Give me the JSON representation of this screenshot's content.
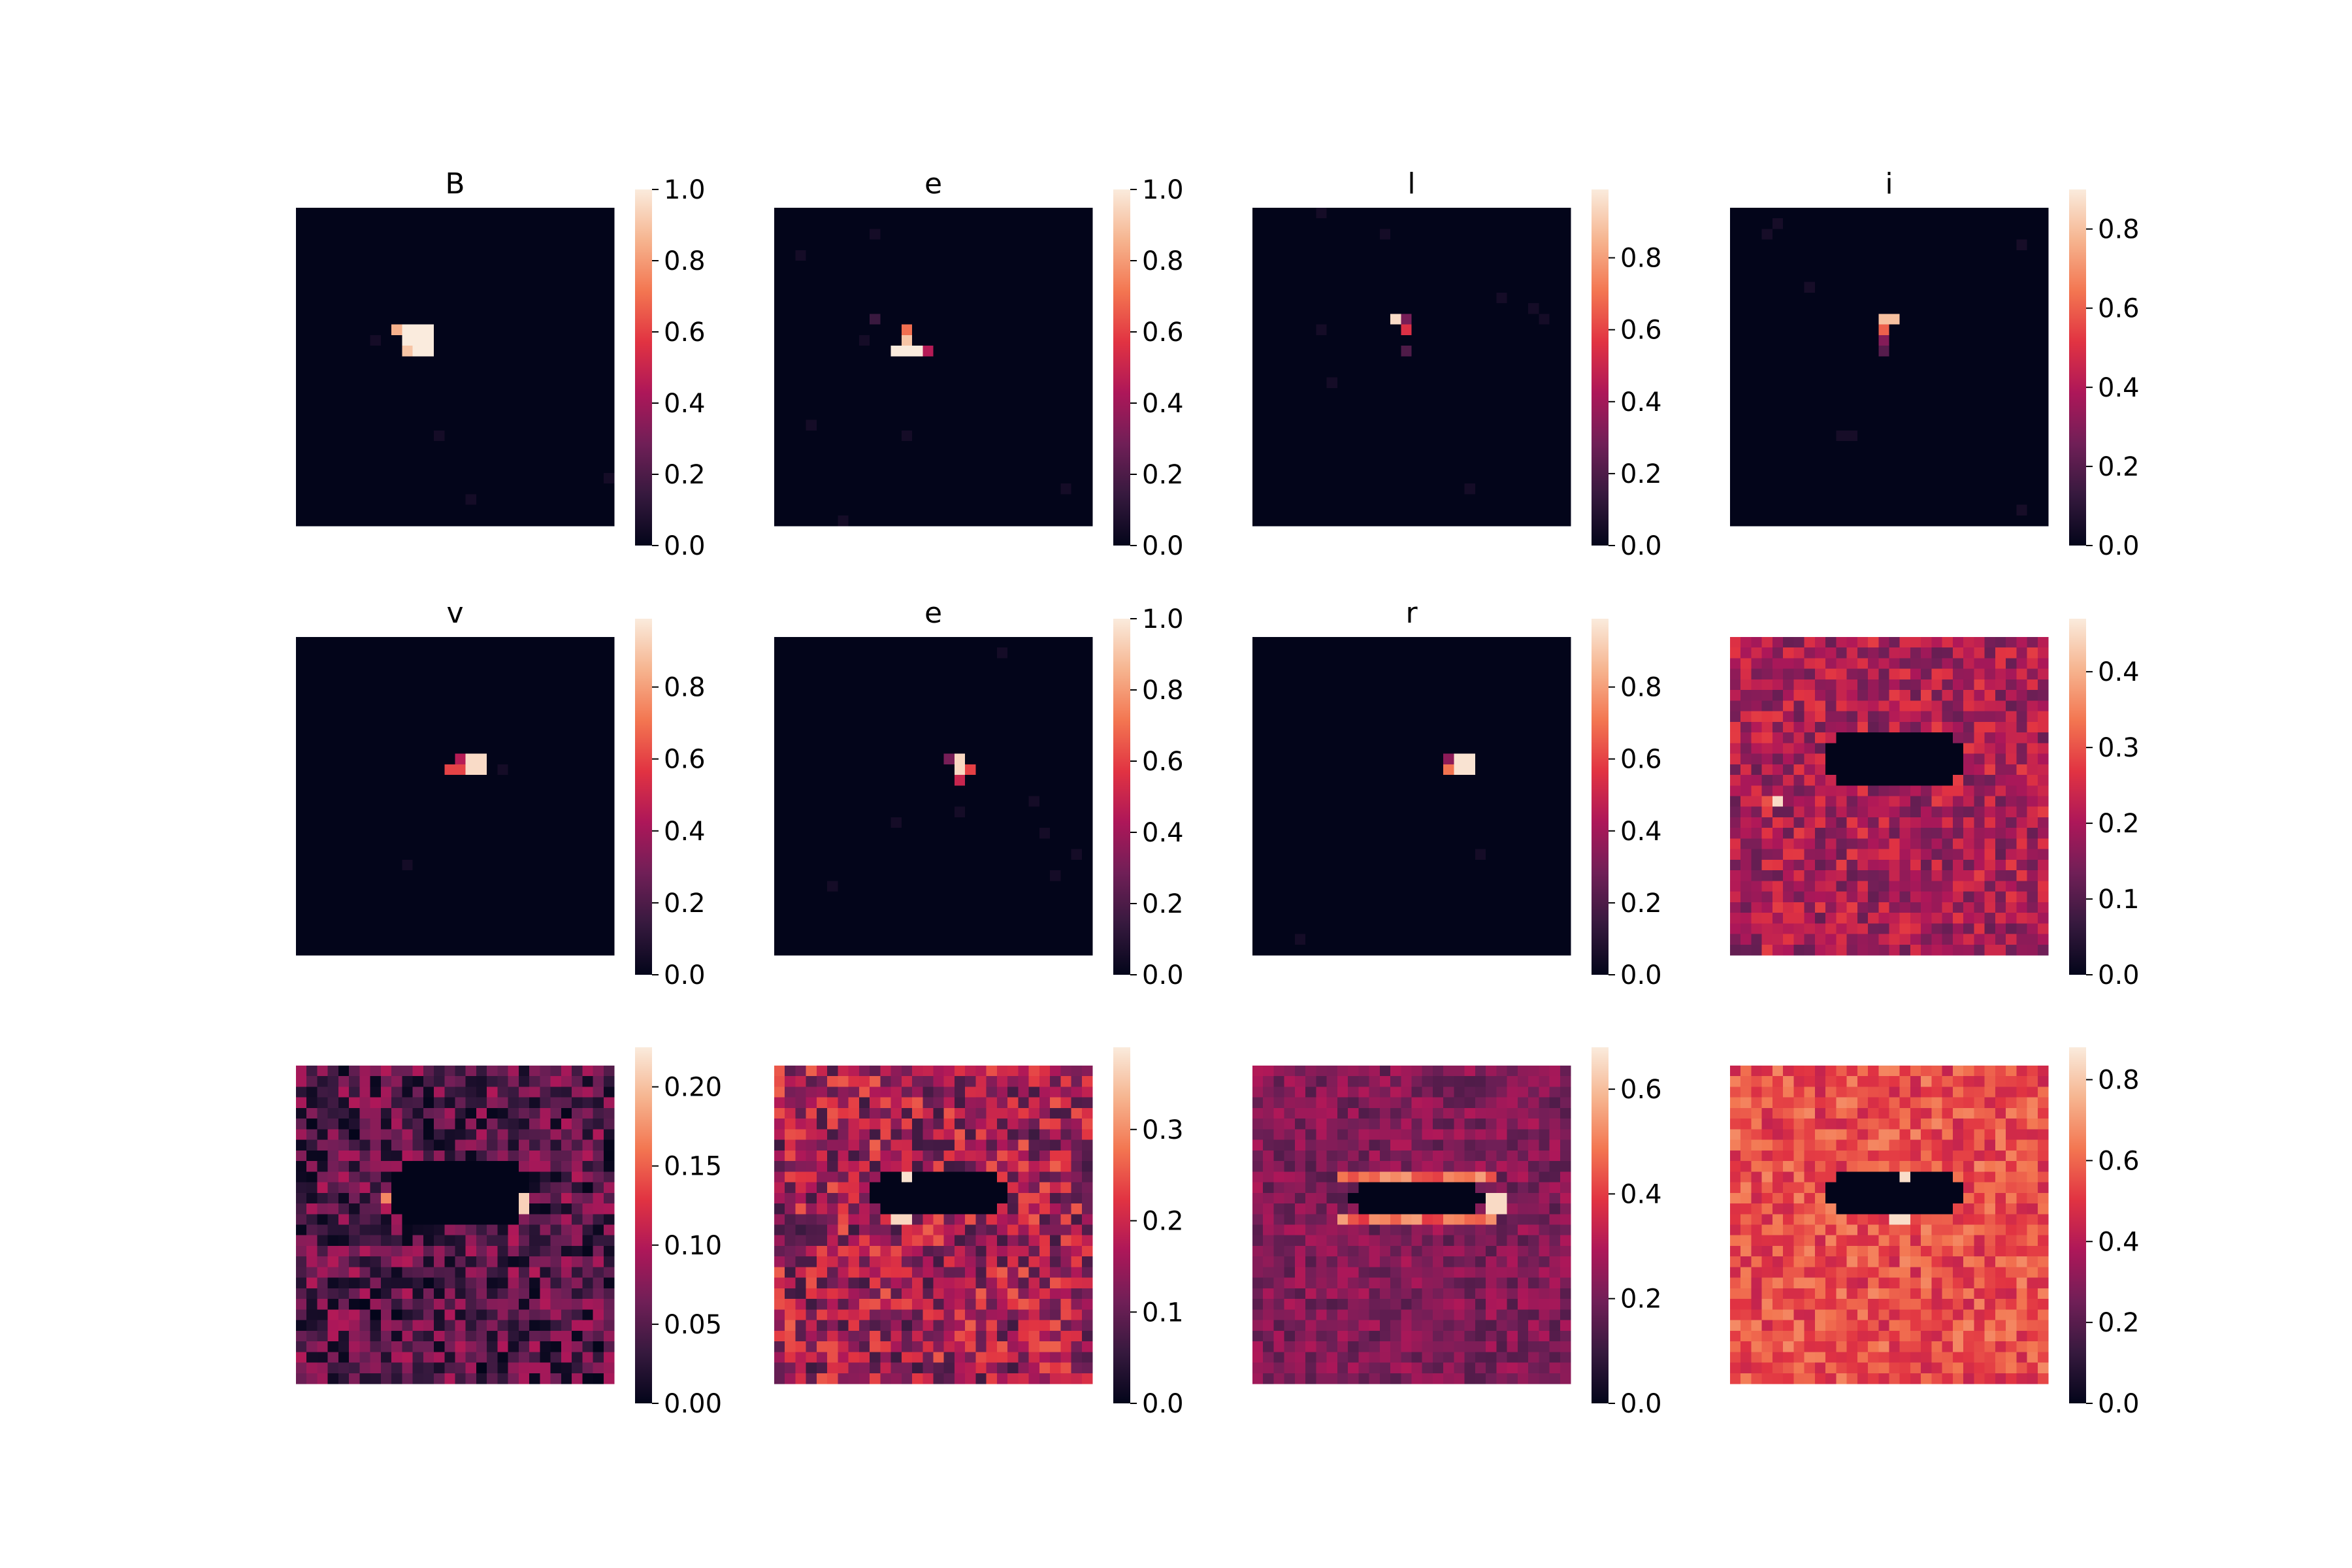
{
  "colormap": {
    "name": "rocket",
    "stops": [
      "#03051a",
      "#36193e",
      "#701f57",
      "#ad1759",
      "#e13342",
      "#f37651",
      "#f6b48f",
      "#faebdd"
    ]
  },
  "chart_data": [
    {
      "type": "heatmap",
      "title": "B",
      "grid_size": 30,
      "vmin": 0,
      "vmax": 1.0,
      "colorbar_ticks": [
        "0.0",
        "0.2",
        "0.4",
        "0.6",
        "0.8",
        "1.0"
      ],
      "pattern": "spot",
      "spots": [
        {
          "row": 11,
          "col": 10,
          "w": 3,
          "h": 3,
          "value": 1.0
        },
        {
          "row": 11,
          "col": 9,
          "w": 1,
          "h": 1,
          "value": 0.85
        },
        {
          "row": 13,
          "col": 10,
          "w": 1,
          "h": 1,
          "value": 0.9
        }
      ],
      "background": 0.0
    },
    {
      "type": "heatmap",
      "title": "e",
      "grid_size": 30,
      "vmin": 0,
      "vmax": 1.0,
      "colorbar_ticks": [
        "0.0",
        "0.2",
        "0.4",
        "0.6",
        "0.8",
        "1.0"
      ],
      "pattern": "spot",
      "spots": [
        {
          "row": 13,
          "col": 11,
          "w": 3,
          "h": 1,
          "value": 1.0
        },
        {
          "row": 12,
          "col": 12,
          "w": 1,
          "h": 1,
          "value": 0.9
        },
        {
          "row": 11,
          "col": 12,
          "w": 1,
          "h": 1,
          "value": 0.7
        },
        {
          "row": 13,
          "col": 14,
          "w": 1,
          "h": 1,
          "value": 0.45
        },
        {
          "row": 10,
          "col": 9,
          "w": 1,
          "h": 1,
          "value": 0.15
        }
      ],
      "background": 0.0
    },
    {
      "type": "heatmap",
      "title": "l",
      "grid_size": 30,
      "vmin": 0,
      "vmax": 0.99,
      "colorbar_ticks": [
        "0.0",
        "0.2",
        "0.4",
        "0.6",
        "0.8"
      ],
      "pattern": "spot",
      "spots": [
        {
          "row": 10,
          "col": 13,
          "w": 1,
          "h": 1,
          "value": 0.95
        },
        {
          "row": 11,
          "col": 14,
          "w": 1,
          "h": 1,
          "value": 0.55
        },
        {
          "row": 10,
          "col": 14,
          "w": 1,
          "h": 1,
          "value": 0.3
        },
        {
          "row": 13,
          "col": 14,
          "w": 1,
          "h": 1,
          "value": 0.2
        }
      ],
      "background": 0.0
    },
    {
      "type": "heatmap",
      "title": "i",
      "grid_size": 30,
      "vmin": 0,
      "vmax": 0.9,
      "colorbar_ticks": [
        "0.0",
        "0.2",
        "0.4",
        "0.6",
        "0.8"
      ],
      "pattern": "spot",
      "spots": [
        {
          "row": 10,
          "col": 14,
          "w": 2,
          "h": 1,
          "value": 0.8
        },
        {
          "row": 11,
          "col": 14,
          "w": 1,
          "h": 1,
          "value": 0.6
        },
        {
          "row": 12,
          "col": 14,
          "w": 1,
          "h": 1,
          "value": 0.3
        },
        {
          "row": 13,
          "col": 14,
          "w": 1,
          "h": 1,
          "value": 0.2
        }
      ],
      "background": 0.0
    },
    {
      "type": "heatmap",
      "title": "v",
      "grid_size": 30,
      "vmin": 0,
      "vmax": 0.99,
      "colorbar_ticks": [
        "0.0",
        "0.2",
        "0.4",
        "0.6",
        "0.8"
      ],
      "pattern": "spot",
      "spots": [
        {
          "row": 11,
          "col": 16,
          "w": 2,
          "h": 2,
          "value": 0.95
        },
        {
          "row": 12,
          "col": 14,
          "w": 2,
          "h": 1,
          "value": 0.6
        },
        {
          "row": 11,
          "col": 15,
          "w": 1,
          "h": 1,
          "value": 0.45
        }
      ],
      "background": 0.0
    },
    {
      "type": "heatmap",
      "title": "e",
      "grid_size": 30,
      "vmin": 0,
      "vmax": 1.0,
      "colorbar_ticks": [
        "0.0",
        "0.2",
        "0.4",
        "0.6",
        "0.8",
        "1.0"
      ],
      "pattern": "spot",
      "spots": [
        {
          "row": 11,
          "col": 17,
          "w": 1,
          "h": 2,
          "value": 0.95
        },
        {
          "row": 12,
          "col": 18,
          "w": 1,
          "h": 1,
          "value": 0.6
        },
        {
          "row": 13,
          "col": 17,
          "w": 1,
          "h": 1,
          "value": 0.5
        },
        {
          "row": 11,
          "col": 16,
          "w": 1,
          "h": 1,
          "value": 0.3
        }
      ],
      "background": 0.0
    },
    {
      "type": "heatmap",
      "title": "r",
      "grid_size": 30,
      "vmin": 0,
      "vmax": 0.99,
      "colorbar_ticks": [
        "0.0",
        "0.2",
        "0.4",
        "0.6",
        "0.8"
      ],
      "pattern": "spot",
      "spots": [
        {
          "row": 11,
          "col": 19,
          "w": 2,
          "h": 2,
          "value": 0.97
        },
        {
          "row": 12,
          "col": 18,
          "w": 1,
          "h": 1,
          "value": 0.7
        },
        {
          "row": 11,
          "col": 18,
          "w": 1,
          "h": 1,
          "value": 0.35
        }
      ],
      "background": 0.0
    },
    {
      "type": "heatmap",
      "title": "",
      "grid_size": 30,
      "vmin": 0,
      "vmax": 0.47,
      "colorbar_ticks": [
        "0.0",
        "0.1",
        "0.2",
        "0.3",
        "0.4"
      ],
      "pattern": "field",
      "field_level": 0.2,
      "field_spread": 0.08,
      "hole": {
        "row": 9,
        "col": 9,
        "w": 13,
        "h": 5
      },
      "spots": [
        {
          "row": 15,
          "col": 4,
          "w": 1,
          "h": 1,
          "value": 0.45
        },
        {
          "row": 15,
          "col": 3,
          "w": 1,
          "h": 1,
          "value": 0.3
        }
      ],
      "background": 0.2
    },
    {
      "type": "heatmap",
      "title": "",
      "grid_size": 30,
      "vmin": 0,
      "vmax": 0.225,
      "colorbar_ticks": [
        "0.00",
        "0.05",
        "0.10",
        "0.15",
        "0.20"
      ],
      "pattern": "field",
      "field_level": 0.05,
      "field_spread": 0.05,
      "hole": {
        "row": 9,
        "col": 9,
        "w": 13,
        "h": 6
      },
      "spots": [
        {
          "row": 12,
          "col": 21,
          "w": 1,
          "h": 2,
          "value": 0.21
        },
        {
          "row": 12,
          "col": 8,
          "w": 1,
          "h": 1,
          "value": 0.17
        }
      ],
      "background": 0.05
    },
    {
      "type": "heatmap",
      "title": "",
      "grid_size": 30,
      "vmin": 0,
      "vmax": 0.39,
      "colorbar_ticks": [
        "0.0",
        "0.1",
        "0.2",
        "0.3"
      ],
      "pattern": "field",
      "field_level": 0.16,
      "field_spread": 0.1,
      "hole": {
        "row": 10,
        "col": 9,
        "w": 13,
        "h": 4
      },
      "spots": [
        {
          "row": 10,
          "col": 12,
          "w": 1,
          "h": 1,
          "value": 0.38
        },
        {
          "row": 14,
          "col": 11,
          "w": 2,
          "h": 1,
          "value": 0.37
        }
      ],
      "background": 0.16
    },
    {
      "type": "heatmap",
      "title": "",
      "grid_size": 30,
      "vmin": 0,
      "vmax": 0.68,
      "colorbar_ticks": [
        "0.0",
        "0.2",
        "0.4",
        "0.6"
      ],
      "pattern": "field",
      "field_level": 0.22,
      "field_spread": 0.08,
      "hole": {
        "row": 11,
        "col": 9,
        "w": 13,
        "h": 3
      },
      "ring": 0.55,
      "spots": [
        {
          "row": 12,
          "col": 22,
          "w": 2,
          "h": 2,
          "value": 0.65
        }
      ],
      "background": 0.22
    },
    {
      "type": "heatmap",
      "title": "",
      "grid_size": 30,
      "vmin": 0,
      "vmax": 0.88,
      "colorbar_ticks": [
        "0.0",
        "0.2",
        "0.4",
        "0.6",
        "0.8"
      ],
      "pattern": "field",
      "field_level": 0.55,
      "field_spread": 0.12,
      "hole": {
        "row": 10,
        "col": 9,
        "w": 13,
        "h": 4
      },
      "spots": [
        {
          "row": 10,
          "col": 16,
          "w": 1,
          "h": 1,
          "value": 0.85
        },
        {
          "row": 14,
          "col": 15,
          "w": 2,
          "h": 1,
          "value": 0.85
        }
      ],
      "background": 0.55
    }
  ]
}
